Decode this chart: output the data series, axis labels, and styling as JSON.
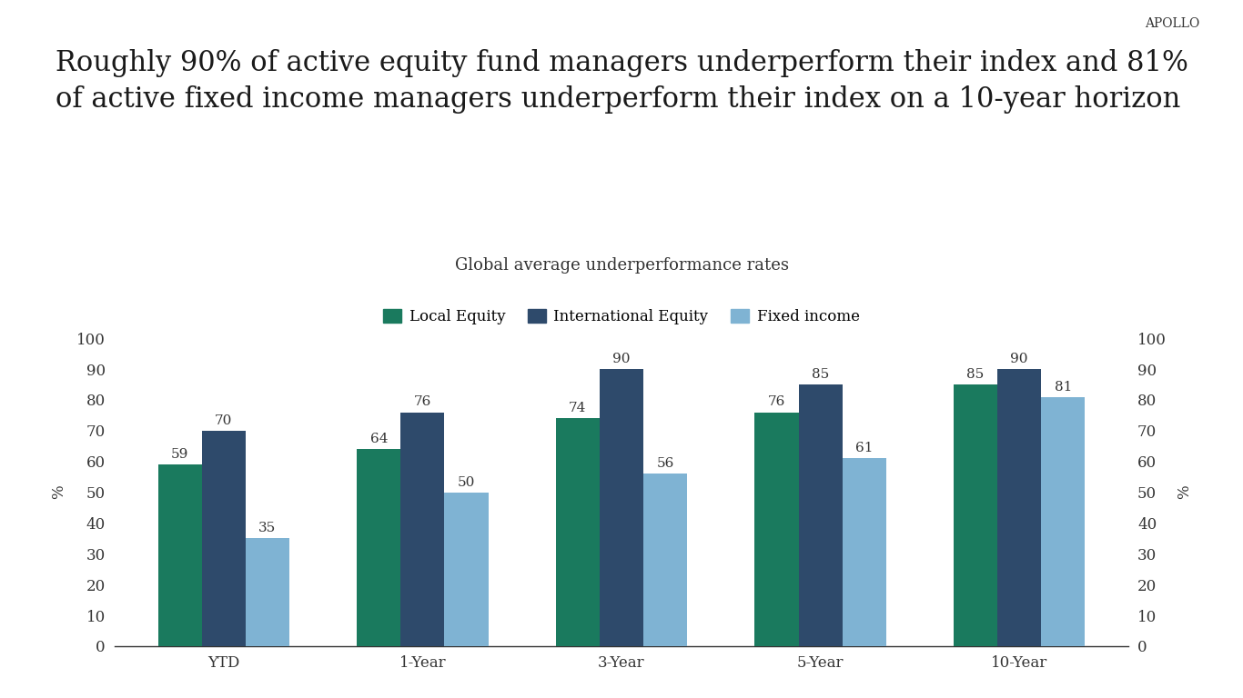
{
  "title": "Roughly 90% of active equity fund managers underperform their index and 81%\nof active fixed income managers underperform their index on a 10-year horizon",
  "subtitle": "Global average underperformance rates",
  "logo_text": "APOLLO",
  "categories": [
    "YTD",
    "1-Year",
    "3-Year",
    "5-Year",
    "10-Year"
  ],
  "series": [
    {
      "name": "Local Equity",
      "values": [
        59,
        64,
        74,
        76,
        85
      ],
      "color": "#1a7a5e"
    },
    {
      "name": "International Equity",
      "values": [
        70,
        76,
        90,
        85,
        90
      ],
      "color": "#2e4a6b"
    },
    {
      "name": "Fixed income",
      "values": [
        35,
        50,
        56,
        61,
        81
      ],
      "color": "#7fb3d3"
    }
  ],
  "ylim": [
    0,
    100
  ],
  "yticks": [
    0,
    10,
    20,
    30,
    40,
    50,
    60,
    70,
    80,
    90,
    100
  ],
  "ylabel": "%",
  "background_color": "#ffffff",
  "title_fontsize": 22,
  "subtitle_fontsize": 13,
  "bar_width": 0.22,
  "annotation_fontsize": 11,
  "tick_fontsize": 12,
  "legend_fontsize": 12
}
